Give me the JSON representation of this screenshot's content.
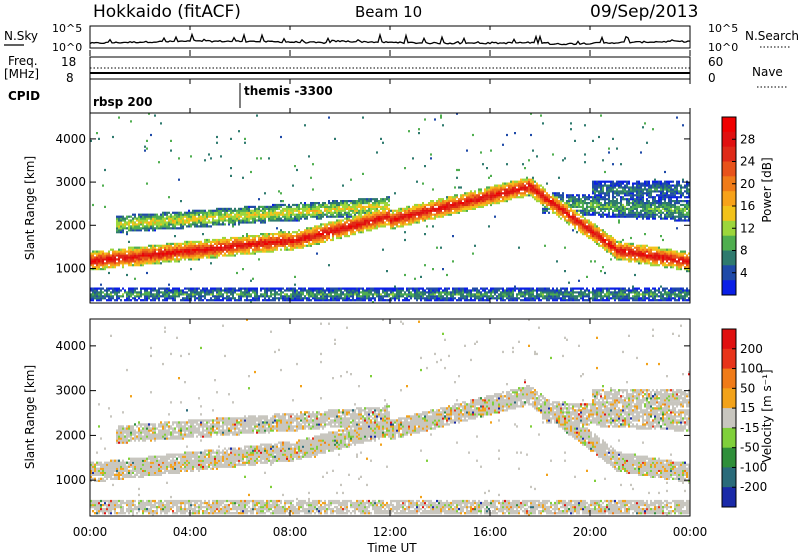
{
  "header": {
    "title": "Hokkaido (fitACF)",
    "beam": "Beam 10",
    "date": "09/Sep/2013"
  },
  "noise_panel": {
    "left_label": "N.Sky",
    "right_label": "N.Search",
    "left_ticks": [
      "10^5",
      "10^0"
    ],
    "right_ticks": [
      "10^5",
      "10^0"
    ]
  },
  "freq_panel": {
    "left_label_line1": "Freq.",
    "left_label_line2": "[MHz]",
    "right_label": "Nave",
    "left_ticks": [
      "18",
      "8"
    ],
    "right_ticks": [
      "60",
      "0"
    ]
  },
  "cpid": {
    "label": "CPID",
    "entries": [
      {
        "text": "rbsp 200",
        "start_hour": 0
      },
      {
        "text": "themis -3300",
        "start_hour": 6
      }
    ]
  },
  "chart_data": [
    {
      "type": "heatmap",
      "name": "power",
      "ylabel": "Slant Range [km]",
      "y_ticks": [
        1000,
        2000,
        3000,
        4000
      ],
      "ylim": [
        200,
        4600
      ],
      "x_range_hours": [
        0,
        24
      ],
      "colorbar": {
        "label": "Power [dB]",
        "ticks": [
          "4",
          "8",
          "12",
          "16",
          "20",
          "24",
          "28"
        ],
        "colors": [
          "#0a1fe6",
          "#1f4aa8",
          "#2e7a6e",
          "#4fae4f",
          "#9cd63b",
          "#f2c21a",
          "#f7a21a",
          "#f07b18",
          "#e8521a",
          "#df2a18",
          "#e01010",
          "#f00000"
        ]
      }
    },
    {
      "type": "heatmap",
      "name": "velocity",
      "ylabel": "Slant Range [km]",
      "y_ticks": [
        1000,
        2000,
        3000,
        4000
      ],
      "ylim": [
        200,
        4600
      ],
      "x_range_hours": [
        0,
        24
      ],
      "colorbar": {
        "label": "Velocity [m s⁻¹]",
        "ticks": [
          "200",
          "100",
          "50",
          "15",
          "-15",
          "-50",
          "-100",
          "-200"
        ],
        "colors": [
          "#1a2aa8",
          "#2a6b7a",
          "#2f8f3a",
          "#7fcf3a",
          "#c8c6bf",
          "#f2a21a",
          "#f07b18",
          "#e8341a",
          "#e01010"
        ]
      }
    }
  ],
  "x_axis": {
    "ticks": [
      "00:00",
      "04:00",
      "08:00",
      "12:00",
      "16:00",
      "20:00",
      "00:00"
    ],
    "label": "Time UT"
  }
}
